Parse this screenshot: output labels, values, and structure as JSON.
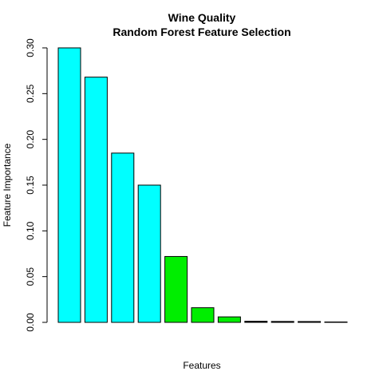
{
  "chart_data": {
    "type": "bar",
    "title": "Wine Quality",
    "subtitle": "Random Forest Feature Selection",
    "xlabel": "Features",
    "ylabel": "Feature Importance",
    "ylim": [
      0,
      0.3
    ],
    "yticks": [
      "0.00",
      "0.05",
      "0.10",
      "0.15",
      "0.20",
      "0.25",
      "0.30"
    ],
    "grid": false,
    "values": [
      0.3,
      0.268,
      0.185,
      0.15,
      0.072,
      0.016,
      0.006,
      0.0012,
      0.001,
      0.0009,
      0.0002
    ],
    "bar_colors": [
      "#00FFFF",
      "#00FFFF",
      "#00FFFF",
      "#00FFFF",
      "#00EE00",
      "#00EE00",
      "#00EE00",
      "#000000",
      "#000000",
      "#000000",
      "#000000"
    ]
  }
}
